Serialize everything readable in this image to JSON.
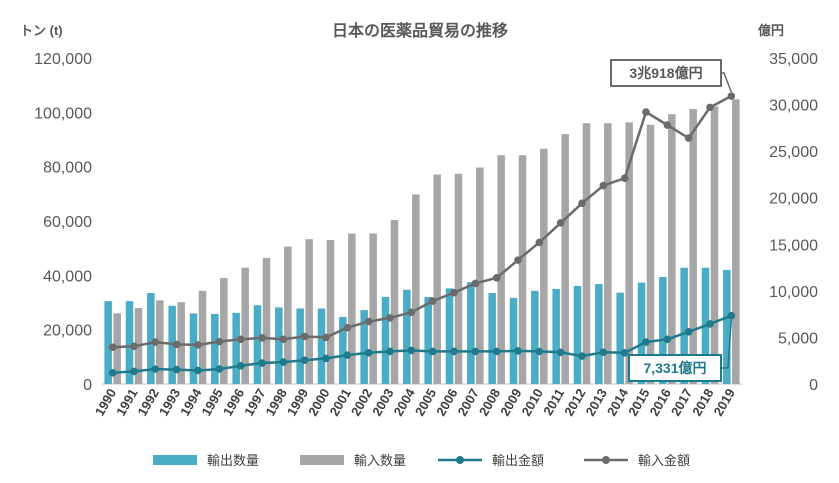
{
  "chart_data": {
    "type": "bar+line",
    "title": "日本の医薬品貿易の推移",
    "left_unit": "トン (t)",
    "right_unit": "億円",
    "left_ylim": [
      0,
      120000
    ],
    "left_ticks": [
      "120,000",
      "100,000",
      "80,000",
      "60,000",
      "40,000",
      "20,000",
      "0"
    ],
    "right_ylim": [
      0,
      35000
    ],
    "right_ticks": [
      "35,000",
      "30,000",
      "25,000",
      "20,000",
      "15,000",
      "10,000",
      "5,000",
      "0"
    ],
    "categories": [
      "1990",
      "1991",
      "1992",
      "1993",
      "1994",
      "1995",
      "1996",
      "1997",
      "1998",
      "1999",
      "2000",
      "2001",
      "2002",
      "2003",
      "2004",
      "2005",
      "2006",
      "2007",
      "2008",
      "2009",
      "2010",
      "2011",
      "2012",
      "2013",
      "2014",
      "2015",
      "2016",
      "2017",
      "2018",
      "2019"
    ],
    "series": [
      {
        "name": "輸出数量",
        "kind": "bar",
        "axis": "left",
        "color": "#4bacc6",
        "values": [
          30500,
          30500,
          33500,
          28800,
          26000,
          25800,
          26200,
          29000,
          28200,
          27800,
          27800,
          24700,
          27200,
          32100,
          34700,
          32000,
          35200,
          37500,
          33500,
          31700,
          34300,
          35000,
          36100,
          36800,
          33600,
          37300,
          39400,
          42800,
          42800,
          42000
        ]
      },
      {
        "name": "輸入数量",
        "kind": "bar",
        "axis": "left",
        "color": "#a6a6a6",
        "values": [
          26000,
          28000,
          30800,
          30100,
          34300,
          39000,
          42800,
          46400,
          50600,
          53300,
          53000,
          55400,
          55400,
          60400,
          69800,
          77100,
          77400,
          79700,
          84200,
          84200,
          86600,
          92000,
          96000,
          96000,
          96300,
          95400,
          99300,
          101200,
          102200,
          104800
        ]
      },
      {
        "name": "輸出金額",
        "kind": "line",
        "axis": "right",
        "color": "#1f7a8c",
        "values": [
          1200,
          1350,
          1600,
          1550,
          1450,
          1600,
          1950,
          2250,
          2350,
          2550,
          2750,
          3100,
          3350,
          3500,
          3600,
          3500,
          3500,
          3500,
          3500,
          3550,
          3500,
          3400,
          3000,
          3400,
          3350,
          4500,
          4800,
          5600,
          6450,
          7331
        ]
      },
      {
        "name": "輸入金額",
        "kind": "line",
        "axis": "right",
        "color": "#6b6b6b",
        "values": [
          3950,
          4050,
          4500,
          4250,
          4200,
          4550,
          4800,
          4950,
          4800,
          5100,
          5000,
          6050,
          6700,
          7100,
          7700,
          8900,
          9800,
          10800,
          11400,
          13300,
          15200,
          17300,
          19400,
          21300,
          22100,
          29200,
          27800,
          26400,
          29700,
          30918
        ]
      }
    ],
    "annotations": [
      {
        "text": "3兆918億円",
        "series": "輸入金額",
        "x": "2019"
      },
      {
        "text": "7,331億円",
        "series": "輸出金額",
        "x": "2019"
      }
    ],
    "legend_position": "bottom",
    "grid": false
  }
}
